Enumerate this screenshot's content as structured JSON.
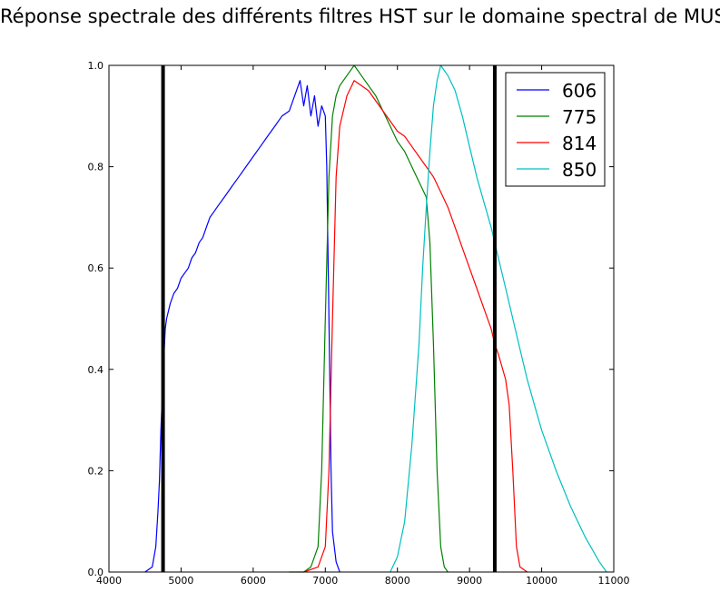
{
  "chart_data": {
    "type": "line",
    "title": "Réponse spectrale des différents filtres HST sur le domaine spectral de MUSE",
    "xlabel": "",
    "ylabel": "",
    "xlim": [
      4000,
      11000
    ],
    "ylim": [
      0,
      1.0
    ],
    "x_ticks": [
      4000,
      5000,
      6000,
      7000,
      8000,
      9000,
      10000,
      11000
    ],
    "y_ticks": [
      0.0,
      0.2,
      0.4,
      0.6,
      0.8,
      1.0
    ],
    "x_tick_labels": [
      "4000",
      "5000",
      "6000",
      "7000",
      "8000",
      "9000",
      "10000",
      "11000"
    ],
    "y_tick_labels": [
      "0.0",
      "0.2",
      "0.4",
      "0.6",
      "0.8",
      "1.0"
    ],
    "grid": false,
    "legend": "top-right",
    "vertical_lines": [
      {
        "x": 4750,
        "color": "#000000"
      },
      {
        "x": 9350,
        "color": "#000000"
      }
    ],
    "series": [
      {
        "name": "606",
        "color": "#0000ff",
        "x": [
          4500,
          4600,
          4650,
          4680,
          4700,
          4720,
          4740,
          4760,
          4780,
          4800,
          4850,
          4900,
          4950,
          5000,
          5050,
          5100,
          5150,
          5200,
          5250,
          5300,
          5350,
          5400,
          5450,
          5500,
          5600,
          5700,
          5800,
          5900,
          6000,
          6100,
          6200,
          6300,
          6400,
          6500,
          6600,
          6650,
          6700,
          6750,
          6800,
          6850,
          6900,
          6950,
          7000,
          7020,
          7040,
          7060,
          7080,
          7100,
          7150,
          7200
        ],
        "y": [
          0.0,
          0.01,
          0.05,
          0.12,
          0.18,
          0.28,
          0.35,
          0.42,
          0.48,
          0.5,
          0.53,
          0.55,
          0.56,
          0.58,
          0.59,
          0.6,
          0.62,
          0.63,
          0.65,
          0.66,
          0.68,
          0.7,
          0.71,
          0.72,
          0.74,
          0.76,
          0.78,
          0.8,
          0.82,
          0.84,
          0.86,
          0.88,
          0.9,
          0.91,
          0.95,
          0.97,
          0.92,
          0.96,
          0.9,
          0.94,
          0.88,
          0.92,
          0.9,
          0.8,
          0.6,
          0.4,
          0.2,
          0.08,
          0.02,
          0.0
        ]
      },
      {
        "name": "775",
        "color": "#008000",
        "x": [
          6500,
          6700,
          6800,
          6900,
          6950,
          7000,
          7050,
          7100,
          7150,
          7200,
          7300,
          7400,
          7500,
          7600,
          7700,
          7800,
          7900,
          8000,
          8100,
          8200,
          8300,
          8400,
          8450,
          8500,
          8550,
          8600,
          8650,
          8700
        ],
        "y": [
          0.0,
          0.0,
          0.01,
          0.05,
          0.2,
          0.5,
          0.78,
          0.9,
          0.94,
          0.96,
          0.98,
          1.0,
          0.98,
          0.96,
          0.94,
          0.91,
          0.88,
          0.85,
          0.83,
          0.8,
          0.77,
          0.74,
          0.65,
          0.45,
          0.2,
          0.05,
          0.01,
          0.0
        ]
      },
      {
        "name": "814",
        "color": "#ff0000",
        "x": [
          6700,
          6900,
          7000,
          7050,
          7100,
          7150,
          7200,
          7300,
          7400,
          7500,
          7600,
          7700,
          7800,
          7900,
          8000,
          8100,
          8200,
          8300,
          8400,
          8500,
          8600,
          8700,
          8800,
          8900,
          9000,
          9100,
          9200,
          9300,
          9350,
          9400,
          9500,
          9550,
          9600,
          9650,
          9700,
          9800
        ],
        "y": [
          0.0,
          0.01,
          0.05,
          0.2,
          0.5,
          0.78,
          0.88,
          0.94,
          0.97,
          0.96,
          0.95,
          0.93,
          0.91,
          0.89,
          0.87,
          0.86,
          0.84,
          0.82,
          0.8,
          0.78,
          0.75,
          0.72,
          0.68,
          0.64,
          0.6,
          0.56,
          0.52,
          0.48,
          0.45,
          0.43,
          0.38,
          0.33,
          0.2,
          0.05,
          0.01,
          0.0
        ]
      },
      {
        "name": "850",
        "color": "#00bfbf",
        "x": [
          7900,
          8000,
          8100,
          8200,
          8300,
          8350,
          8400,
          8450,
          8500,
          8550,
          8600,
          8650,
          8700,
          8800,
          8900,
          9000,
          9100,
          9200,
          9300,
          9400,
          9500,
          9600,
          9700,
          9800,
          9900,
          10000,
          10200,
          10400,
          10600,
          10800,
          10900
        ],
        "y": [
          0.0,
          0.03,
          0.1,
          0.25,
          0.45,
          0.6,
          0.72,
          0.83,
          0.92,
          0.97,
          1.0,
          0.99,
          0.98,
          0.95,
          0.9,
          0.84,
          0.78,
          0.73,
          0.68,
          0.62,
          0.56,
          0.5,
          0.44,
          0.38,
          0.33,
          0.28,
          0.2,
          0.13,
          0.07,
          0.02,
          0.0
        ]
      }
    ]
  }
}
